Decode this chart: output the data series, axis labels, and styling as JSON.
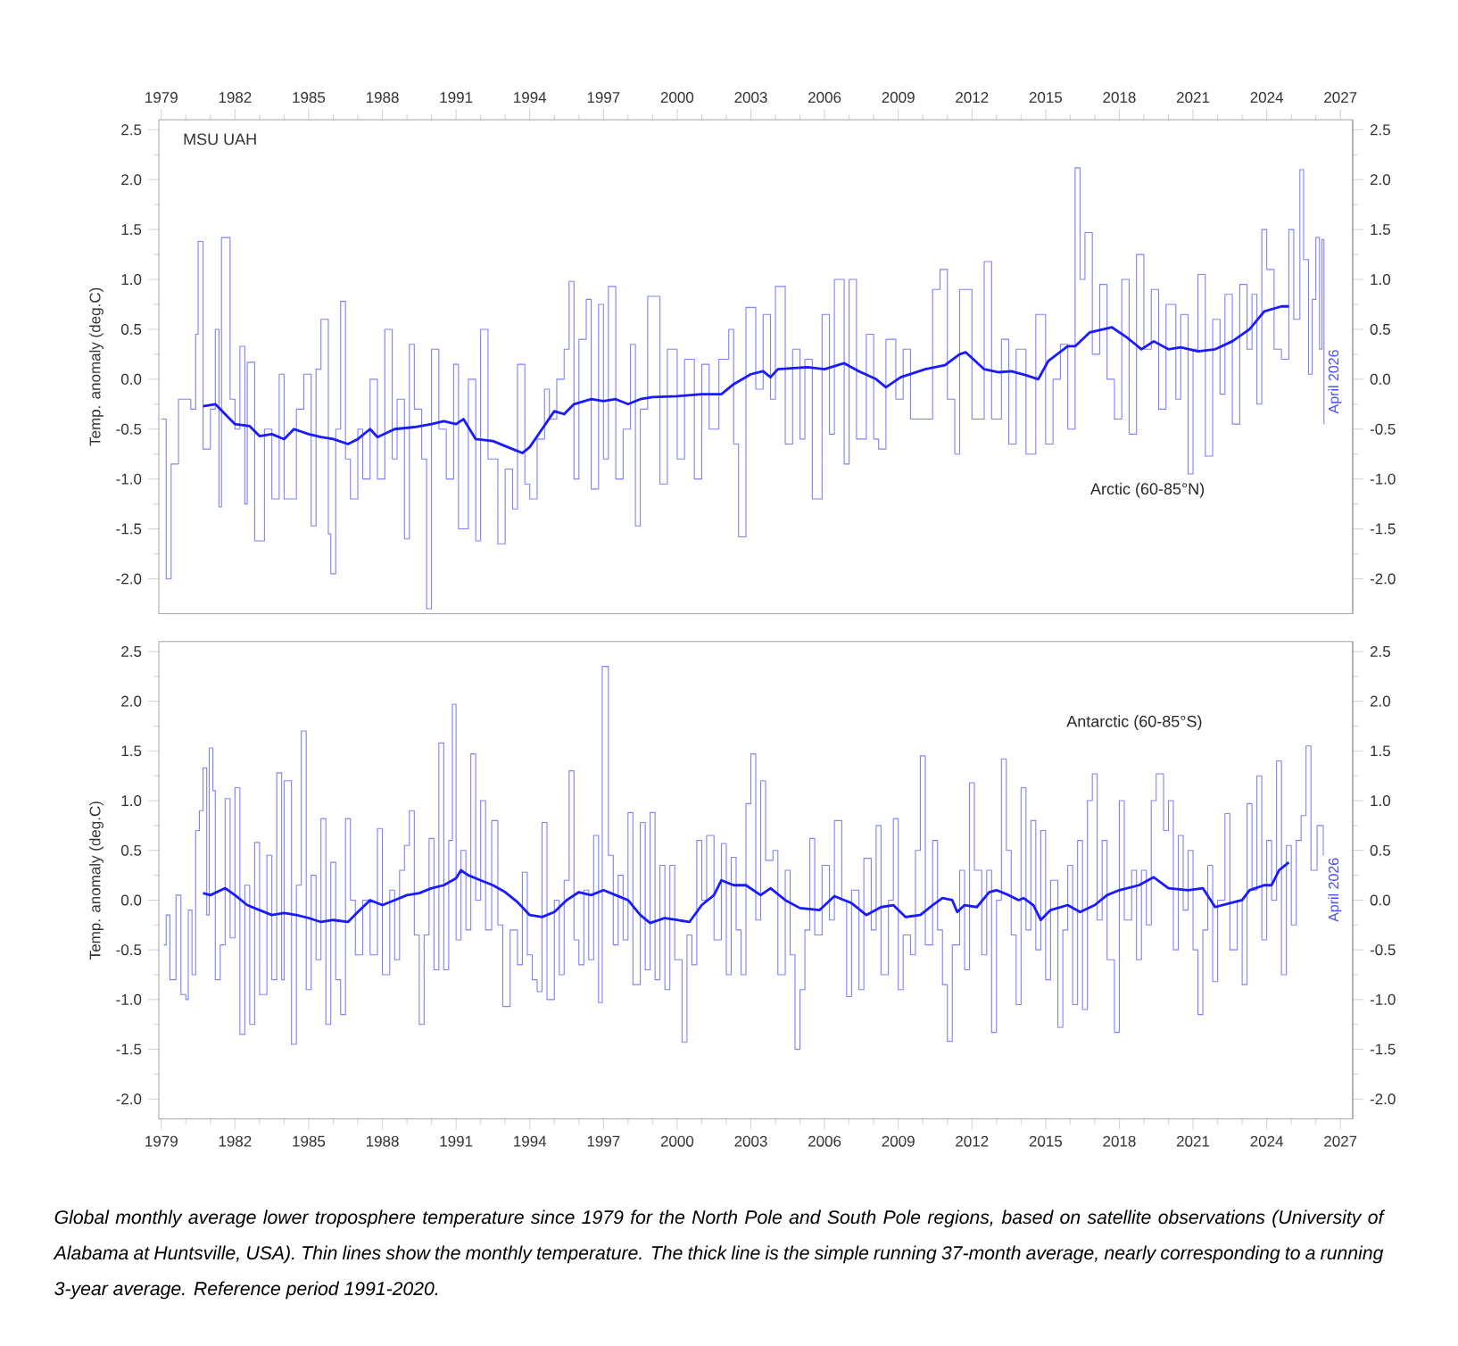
{
  "chart_data": [
    {
      "type": "line",
      "ylabel": "Temp. anomaly (deg.C)",
      "annotations": [
        "MSU UAH",
        "Arctic (60-85°N)",
        "April 2026"
      ],
      "xlim": [
        1978.9,
        2027.5
      ],
      "xticks": [
        1979,
        1982,
        1985,
        1988,
        1991,
        1994,
        1997,
        2000,
        2003,
        2006,
        2009,
        2012,
        2015,
        2018,
        2021,
        2024,
        2027
      ],
      "ylim": [
        -2.35,
        2.6
      ],
      "yticks": [
        2.5,
        {
          "value": 2,
          "label": "2.0"
        },
        1.5,
        {
          "value": 1,
          "label": "1.0"
        },
        0.5,
        {
          "value": 0,
          "label": "0.0"
        },
        -0.5,
        {
          "value": -1,
          "label": "-1.0"
        },
        -1.5,
        {
          "value": -2,
          "label": "-2.0"
        }
      ],
      "y2lim": [
        -2.35,
        2.6
      ],
      "y2ticks": [
        2.5,
        {
          "value": 2,
          "label": "2.0"
        },
        1.5,
        {
          "value": 1,
          "label": "1.0"
        },
        0.5,
        {
          "value": 0,
          "label": "0.0"
        },
        -0.5,
        {
          "value": -1,
          "label": "-1.0"
        },
        -1.5,
        {
          "value": -2,
          "label": "-2.0"
        }
      ],
      "series": [
        {
          "type": "step",
          "color": "#8080ff",
          "x": [
            1979.0,
            1979.2,
            1979.4,
            1979.7,
            1980.2,
            1980.4,
            1980.5,
            1980.7,
            1981.0,
            1981.2,
            1981.35,
            1981.45,
            1981.8,
            1982.0,
            1982.2,
            1982.4,
            1982.5,
            1982.8,
            1983.2,
            1983.5,
            1983.8,
            1984.0,
            1984.5,
            1984.8,
            1985.1,
            1985.3,
            1985.5,
            1985.8,
            1985.9,
            1986.1,
            1986.3,
            1986.5,
            1986.7,
            1987.0,
            1987.2,
            1987.5,
            1987.8,
            1988.1,
            1988.4,
            1988.6,
            1988.9,
            1989.1,
            1989.3,
            1989.6,
            1989.8,
            1990.0,
            1990.3,
            1990.6,
            1990.9,
            1991.1,
            1991.5,
            1991.8,
            1992.0,
            1992.3,
            1992.7,
            1993.0,
            1993.3,
            1993.5,
            1993.8,
            1994.0,
            1994.3,
            1994.6,
            1994.8,
            1995.1,
            1995.4,
            1995.6,
            1995.8,
            1996.0,
            1996.3,
            1996.5,
            1996.8,
            1997.0,
            1997.2,
            1997.5,
            1997.8,
            1998.1,
            1998.3,
            1998.5,
            1998.8,
            1999.3,
            1999.6,
            2000.0,
            2000.3,
            2000.7,
            2001.0,
            2001.3,
            2001.7,
            2002.1,
            2002.3,
            2002.5,
            2002.8,
            2003.2,
            2003.5,
            2003.8,
            2004.0,
            2004.4,
            2004.7,
            2005.0,
            2005.2,
            2005.5,
            2005.9,
            2006.2,
            2006.4,
            2006.8,
            2007.0,
            2007.3,
            2007.7,
            2008.0,
            2008.2,
            2008.5,
            2008.9,
            2009.2,
            2009.5,
            2010.0,
            2010.4,
            2010.7,
            2011.0,
            2011.3,
            2011.5,
            2012.0,
            2012.5,
            2012.8,
            2013.2,
            2013.5,
            2013.8,
            2014.2,
            2014.6,
            2015.0,
            2015.3,
            2015.6,
            2015.9,
            2016.2,
            2016.4,
            2016.6,
            2016.9,
            2017.2,
            2017.5,
            2017.8,
            2018.1,
            2018.4,
            2018.7,
            2019.0,
            2019.3,
            2019.6,
            2019.9,
            2020.3,
            2020.5,
            2020.8,
            2021.0,
            2021.2,
            2021.5,
            2021.8,
            2022.1,
            2022.3,
            2022.6,
            2022.9,
            2023.2,
            2023.4,
            2023.6,
            2023.8,
            2024.0,
            2024.3,
            2024.6,
            2024.9,
            2025.1,
            2025.35,
            2025.5,
            2025.7,
            2025.85,
            2026.0,
            2026.15,
            2026.25,
            2026.33
          ],
          "values": [
            -0.4,
            -2.0,
            -0.85,
            -0.2,
            -0.3,
            0.45,
            1.38,
            -0.7,
            -0.3,
            0.5,
            -1.28,
            1.42,
            -0.2,
            -0.5,
            0.33,
            -1.25,
            0.17,
            -1.62,
            -0.5,
            -1.2,
            0.05,
            -1.2,
            -0.3,
            0.05,
            -1.47,
            0.1,
            0.6,
            -1.55,
            -1.95,
            -0.5,
            0.78,
            -0.8,
            -1.2,
            -0.5,
            -1.0,
            0.0,
            -1.0,
            0.5,
            -0.8,
            -0.2,
            -1.6,
            0.35,
            -0.3,
            -0.8,
            -2.3,
            0.3,
            -0.5,
            -1.0,
            0.15,
            -1.5,
            0.0,
            -1.62,
            0.5,
            -0.8,
            -1.65,
            -0.9,
            -1.3,
            0.15,
            -1.05,
            -1.2,
            -0.6,
            -0.1,
            -0.4,
            0.0,
            0.3,
            0.98,
            -1.0,
            0.4,
            0.8,
            -1.1,
            0.75,
            -0.8,
            0.93,
            -1.0,
            -0.5,
            0.35,
            -1.47,
            -0.3,
            0.83,
            -1.05,
            0.3,
            -0.8,
            0.2,
            -1.0,
            0.15,
            -0.5,
            0.2,
            0.5,
            -0.65,
            -1.58,
            0.72,
            -0.1,
            0.65,
            -0.2,
            0.93,
            -0.65,
            0.3,
            -0.6,
            0.2,
            -1.2,
            0.65,
            -0.55,
            1.0,
            -0.85,
            1.0,
            -0.6,
            0.45,
            -0.6,
            -0.7,
            0.4,
            -0.2,
            0.3,
            -0.4,
            -0.4,
            0.9,
            1.1,
            -0.2,
            -0.75,
            0.9,
            -0.4,
            1.18,
            -0.4,
            0.4,
            -0.65,
            0.3,
            -0.75,
            0.65,
            -0.65,
            0.0,
            0.35,
            -0.5,
            2.12,
            1.0,
            1.47,
            0.25,
            0.95,
            0.0,
            -0.4,
            1.0,
            -0.55,
            1.25,
            0.3,
            0.9,
            -0.3,
            0.75,
            -0.2,
            0.65,
            -0.95,
            0.3,
            1.05,
            -0.77,
            0.6,
            -0.15,
            0.85,
            -0.45,
            0.95,
            0.3,
            0.85,
            -0.25,
            1.5,
            1.1,
            0.3,
            0.2,
            1.5,
            0.6,
            2.1,
            1.2,
            0.05,
            0.8,
            1.42,
            0.3,
            1.4,
            -0.45
          ]
        },
        {
          "color": "#1a1aff",
          "x": [
            1980.7,
            1981.2,
            1982.0,
            1982.6,
            1983.0,
            1983.5,
            1984.0,
            1984.4,
            1985.0,
            1985.5,
            1986.0,
            1986.6,
            1987.0,
            1987.5,
            1987.8,
            1988.5,
            1989.3,
            1990.0,
            1990.5,
            1991.0,
            1991.3,
            1991.8,
            1992.5,
            1993.3,
            1993.7,
            1994.0,
            1994.5,
            1995.0,
            1995.4,
            1995.8,
            1996.5,
            1997.0,
            1997.5,
            1998.0,
            1998.5,
            1999.0,
            2000.0,
            2001.0,
            2001.8,
            2002.3,
            2003.0,
            2003.5,
            2003.8,
            2004.1,
            2005.3,
            2006.0,
            2006.8,
            2007.4,
            2008.1,
            2008.5,
            2009.1,
            2010.1,
            2010.9,
            2011.5,
            2011.75,
            2012.5,
            2013.1,
            2013.6,
            2014.2,
            2014.7,
            2015.1,
            2015.9,
            2016.2,
            2016.8,
            2017.7,
            2018.3,
            2018.9,
            2019.4,
            2020.0,
            2020.5,
            2021.2,
            2021.9,
            2022.6,
            2023.3,
            2023.9,
            2024.6,
            2024.9
          ],
          "values": [
            -0.27,
            -0.25,
            -0.45,
            -0.47,
            -0.57,
            -0.55,
            -0.6,
            -0.5,
            -0.55,
            -0.58,
            -0.6,
            -0.65,
            -0.6,
            -0.5,
            -0.58,
            -0.5,
            -0.48,
            -0.45,
            -0.42,
            -0.45,
            -0.4,
            -0.6,
            -0.62,
            -0.7,
            -0.74,
            -0.68,
            -0.5,
            -0.32,
            -0.35,
            -0.25,
            -0.2,
            -0.22,
            -0.2,
            -0.25,
            -0.2,
            -0.18,
            -0.17,
            -0.15,
            -0.15,
            -0.05,
            0.05,
            0.08,
            0.02,
            0.1,
            0.12,
            0.1,
            0.16,
            0.08,
            0.0,
            -0.08,
            0.02,
            0.1,
            0.14,
            0.25,
            0.27,
            0.1,
            0.07,
            0.08,
            0.04,
            0.0,
            0.18,
            0.33,
            0.33,
            0.47,
            0.52,
            0.42,
            0.3,
            0.38,
            0.3,
            0.32,
            0.28,
            0.3,
            0.38,
            0.5,
            0.68,
            0.73,
            0.73
          ]
        }
      ]
    },
    {
      "type": "line",
      "ylabel": "Temp. anomaly (deg.C)",
      "annotations": [
        "Antarctic (60-85°S)",
        "April 2026",
        "Global monthly average lower troposphere temperature since 1979 for the North Pole and South Pole regions, based on satellite observations (University of Alabama at Huntsville, USA). Thin lines show the monthly temperature. The thick line is the simple running 37-month average, nearly corresponding to a running 3-year average. Reference period 1991-2020."
      ],
      "xlim": [
        1978.9,
        2027.5
      ],
      "xticks": [
        1979,
        1982,
        1985,
        1988,
        1991,
        1994,
        1997,
        2000,
        2003,
        2006,
        2009,
        2012,
        2015,
        2018,
        2021,
        2024,
        2027
      ],
      "ylim": [
        -2.2,
        2.6
      ],
      "yticks": [
        2.5,
        {
          "value": 2,
          "label": "2.0"
        },
        1.5,
        {
          "value": 1,
          "label": "1.0"
        },
        0.5,
        {
          "value": 0,
          "label": "0.0"
        },
        -0.5,
        {
          "value": -1,
          "label": "-1.0"
        },
        -1.5,
        {
          "value": -2,
          "label": "-2.0"
        }
      ],
      "y2lim": [
        -2.2,
        2.6
      ],
      "y2ticks": [
        2.5,
        {
          "value": 2,
          "label": "2.0"
        },
        1.5,
        {
          "value": 1,
          "label": "1.0"
        },
        0.5,
        {
          "value": 0,
          "label": "0.0"
        },
        -0.5,
        {
          "value": -1,
          "label": "-1.0"
        },
        -1.5,
        {
          "value": -2,
          "label": "-2.0"
        }
      ],
      "series": [
        {
          "type": "step",
          "color": "#8080ff",
          "x": [
            1979.1,
            1979.2,
            1979.35,
            1979.6,
            1979.8,
            1980.0,
            1980.1,
            1980.25,
            1980.4,
            1980.55,
            1980.7,
            1980.85,
            1980.95,
            1981.1,
            1981.2,
            1981.4,
            1981.6,
            1981.8,
            1982.0,
            1982.2,
            1982.4,
            1982.6,
            1982.8,
            1983.0,
            1983.3,
            1983.5,
            1983.7,
            1983.9,
            1984.0,
            1984.3,
            1984.5,
            1984.7,
            1984.9,
            1985.1,
            1985.3,
            1985.5,
            1985.7,
            1985.9,
            1986.1,
            1986.3,
            1986.5,
            1986.7,
            1986.9,
            1987.2,
            1987.5,
            1987.8,
            1988.0,
            1988.3,
            1988.5,
            1988.7,
            1988.9,
            1989.1,
            1989.3,
            1989.5,
            1989.7,
            1989.9,
            1990.1,
            1990.3,
            1990.5,
            1990.7,
            1990.85,
            1991.0,
            1991.2,
            1991.4,
            1991.6,
            1991.8,
            1992.0,
            1992.2,
            1992.45,
            1992.7,
            1992.9,
            1993.2,
            1993.5,
            1993.7,
            1993.9,
            1994.1,
            1994.3,
            1994.5,
            1994.7,
            1995.0,
            1995.2,
            1995.4,
            1995.6,
            1995.8,
            1996.0,
            1996.2,
            1996.4,
            1996.6,
            1996.8,
            1996.95,
            1997.2,
            1997.4,
            1997.6,
            1997.8,
            1998.0,
            1998.2,
            1998.5,
            1998.7,
            1998.9,
            1999.1,
            1999.3,
            1999.5,
            1999.7,
            1999.9,
            2000.2,
            2000.4,
            2000.6,
            2000.8,
            2001.0,
            2001.2,
            2001.5,
            2001.8,
            2002.0,
            2002.2,
            2002.4,
            2002.6,
            2002.8,
            2003.0,
            2003.2,
            2003.4,
            2003.6,
            2003.9,
            2004.1,
            2004.4,
            2004.6,
            2004.8,
            2005.0,
            2005.2,
            2005.4,
            2005.6,
            2005.9,
            2006.2,
            2006.4,
            2006.7,
            2006.9,
            2007.1,
            2007.4,
            2007.6,
            2007.9,
            2008.1,
            2008.3,
            2008.6,
            2008.8,
            2009.0,
            2009.2,
            2009.5,
            2009.7,
            2009.9,
            2010.1,
            2010.4,
            2010.6,
            2010.8,
            2011.0,
            2011.2,
            2011.5,
            2011.7,
            2011.9,
            2012.1,
            2012.4,
            2012.6,
            2012.8,
            2013.0,
            2013.2,
            2013.4,
            2013.6,
            2013.8,
            2014.0,
            2014.2,
            2014.4,
            2014.6,
            2014.8,
            2015.0,
            2015.2,
            2015.5,
            2015.7,
            2015.9,
            2016.1,
            2016.3,
            2016.5,
            2016.7,
            2016.9,
            2017.1,
            2017.3,
            2017.5,
            2017.8,
            2018.0,
            2018.2,
            2018.5,
            2018.7,
            2018.9,
            2019.1,
            2019.3,
            2019.5,
            2019.8,
            2020.0,
            2020.2,
            2020.4,
            2020.6,
            2020.8,
            2021.0,
            2021.2,
            2021.4,
            2021.6,
            2021.8,
            2022.0,
            2022.3,
            2022.5,
            2022.8,
            2023.0,
            2023.2,
            2023.4,
            2023.6,
            2023.8,
            2024.0,
            2024.2,
            2024.4,
            2024.6,
            2024.8,
            2025.0,
            2025.2,
            2025.4,
            2025.6,
            2025.8,
            2026.05,
            2026.3
          ],
          "values": [
            -0.45,
            -0.15,
            -0.8,
            0.05,
            -0.95,
            -1.0,
            -0.1,
            -0.75,
            0.7,
            0.9,
            1.33,
            -0.15,
            1.53,
            1.1,
            -0.8,
            -0.45,
            1.02,
            -0.38,
            1.13,
            -1.35,
            0.15,
            -1.25,
            0.58,
            -0.95,
            0.45,
            -0.8,
            1.28,
            -0.8,
            1.2,
            -1.45,
            0.15,
            1.7,
            -0.9,
            0.25,
            -0.6,
            0.82,
            -1.25,
            0.38,
            -0.8,
            -1.15,
            0.82,
            0.0,
            -0.55,
            0.0,
            -0.55,
            0.72,
            -0.75,
            0.1,
            -0.6,
            0.3,
            0.55,
            0.9,
            -0.35,
            -1.25,
            -0.35,
            0.62,
            -0.7,
            1.58,
            -0.7,
            0.6,
            1.97,
            -0.4,
            0.5,
            -0.3,
            1.47,
            0.0,
            1.0,
            -0.3,
            0.8,
            -0.25,
            -1.07,
            -0.3,
            -0.65,
            0.28,
            -0.55,
            -0.8,
            -0.92,
            0.78,
            -1.0,
            0.0,
            -0.75,
            0.2,
            1.3,
            -0.4,
            -0.65,
            0.1,
            -0.6,
            0.65,
            -1.03,
            2.35,
            0.45,
            -0.45,
            0.25,
            -0.4,
            0.88,
            -0.85,
            0.78,
            -0.7,
            0.88,
            -0.8,
            0.35,
            -0.9,
            0.35,
            -0.6,
            -1.43,
            -0.35,
            -0.65,
            0.6,
            0.0,
            0.65,
            -0.4,
            0.57,
            -0.75,
            0.43,
            -0.3,
            -0.75,
            0.97,
            1.47,
            -0.2,
            1.2,
            0.4,
            0.5,
            -0.75,
            0.3,
            -0.55,
            -1.5,
            -0.9,
            -0.3,
            0.62,
            -0.35,
            0.35,
            -0.2,
            0.8,
            0.0,
            -0.97,
            0.1,
            -0.9,
            0.42,
            -0.3,
            0.75,
            -0.75,
            0.0,
            0.82,
            -0.9,
            -0.35,
            -0.55,
            0.5,
            1.45,
            -0.45,
            0.6,
            -0.3,
            -0.85,
            -1.42,
            -0.45,
            0.3,
            -0.7,
            1.18,
            0.3,
            -0.55,
            0.3,
            -1.33,
            0.0,
            1.42,
            0.5,
            -0.35,
            -1.05,
            1.13,
            -0.3,
            0.8,
            -0.5,
            0.7,
            -0.8,
            0.2,
            -1.28,
            -0.3,
            0.35,
            -1.05,
            0.6,
            -1.1,
            1.0,
            1.27,
            -0.2,
            0.6,
            -0.6,
            -1.33,
            1.0,
            -0.2,
            0.3,
            -0.6,
            0.3,
            -0.25,
            1.0,
            1.27,
            0.7,
            1.0,
            -0.5,
            0.65,
            -0.1,
            0.5,
            -0.5,
            -1.15,
            -0.3,
            0.35,
            -0.82,
            0.0,
            0.87,
            -0.5,
            0.0,
            -0.85,
            0.97,
            0.1,
            1.25,
            -0.4,
            0.6,
            0.0,
            1.4,
            -0.75,
            0.55,
            -0.25,
            0.6,
            0.85,
            1.55,
            0.3,
            0.75,
            0.45
          ]
        },
        {
          "color": "#1a1aff",
          "x": [
            1980.7,
            1981.0,
            1981.6,
            1982.0,
            1982.5,
            1983.0,
            1983.5,
            1984.0,
            1984.5,
            1985.0,
            1985.5,
            1986.0,
            1986.6,
            1987.0,
            1987.5,
            1988.0,
            1988.5,
            1989.0,
            1989.5,
            1990.0,
            1990.5,
            1991.0,
            1991.2,
            1991.5,
            1992.0,
            1992.5,
            1993.0,
            1993.5,
            1994.0,
            1994.5,
            1995.0,
            1995.5,
            1996.0,
            1996.5,
            1997.0,
            1997.5,
            1998.0,
            1998.5,
            1998.9,
            1999.5,
            2000.0,
            2000.5,
            2001.0,
            2001.5,
            2001.8,
            2002.3,
            2002.8,
            2003.4,
            2003.8,
            2004.4,
            2005.0,
            2005.8,
            2006.4,
            2006.8,
            2007.1,
            2007.7,
            2008.3,
            2008.8,
            2009.3,
            2009.9,
            2010.4,
            2010.8,
            2011.2,
            2011.4,
            2011.7,
            2012.2,
            2012.7,
            2013.0,
            2013.5,
            2013.9,
            2014.1,
            2014.5,
            2014.8,
            2015.2,
            2015.9,
            2016.4,
            2017.0,
            2017.5,
            2018.0,
            2018.8,
            2019.4,
            2020.0,
            2020.8,
            2021.4,
            2021.9,
            2022.5,
            2023.0,
            2023.3,
            2023.9,
            2024.2,
            2024.5,
            2024.9
          ],
          "values": [
            0.07,
            0.05,
            0.12,
            0.05,
            -0.05,
            -0.1,
            -0.15,
            -0.13,
            -0.15,
            -0.18,
            -0.22,
            -0.2,
            -0.22,
            -0.12,
            0.0,
            -0.05,
            0.0,
            0.05,
            0.07,
            0.12,
            0.15,
            0.22,
            0.3,
            0.25,
            0.2,
            0.15,
            0.08,
            -0.02,
            -0.15,
            -0.17,
            -0.12,
            0.0,
            0.08,
            0.05,
            0.1,
            0.05,
            0.0,
            -0.15,
            -0.23,
            -0.18,
            -0.2,
            -0.22,
            -0.05,
            0.05,
            0.2,
            0.15,
            0.15,
            0.05,
            0.12,
            0.0,
            -0.08,
            -0.1,
            0.04,
            0.0,
            -0.03,
            -0.15,
            -0.07,
            -0.05,
            -0.17,
            -0.15,
            -0.05,
            0.02,
            0.0,
            -0.12,
            -0.05,
            -0.07,
            0.08,
            0.1,
            0.05,
            0.0,
            0.02,
            -0.05,
            -0.2,
            -0.1,
            -0.05,
            -0.12,
            -0.05,
            0.05,
            0.1,
            0.15,
            0.23,
            0.12,
            0.1,
            0.12,
            -0.07,
            -0.03,
            0.0,
            0.1,
            0.15,
            0.15,
            0.3,
            0.38
          ]
        }
      ]
    }
  ]
}
